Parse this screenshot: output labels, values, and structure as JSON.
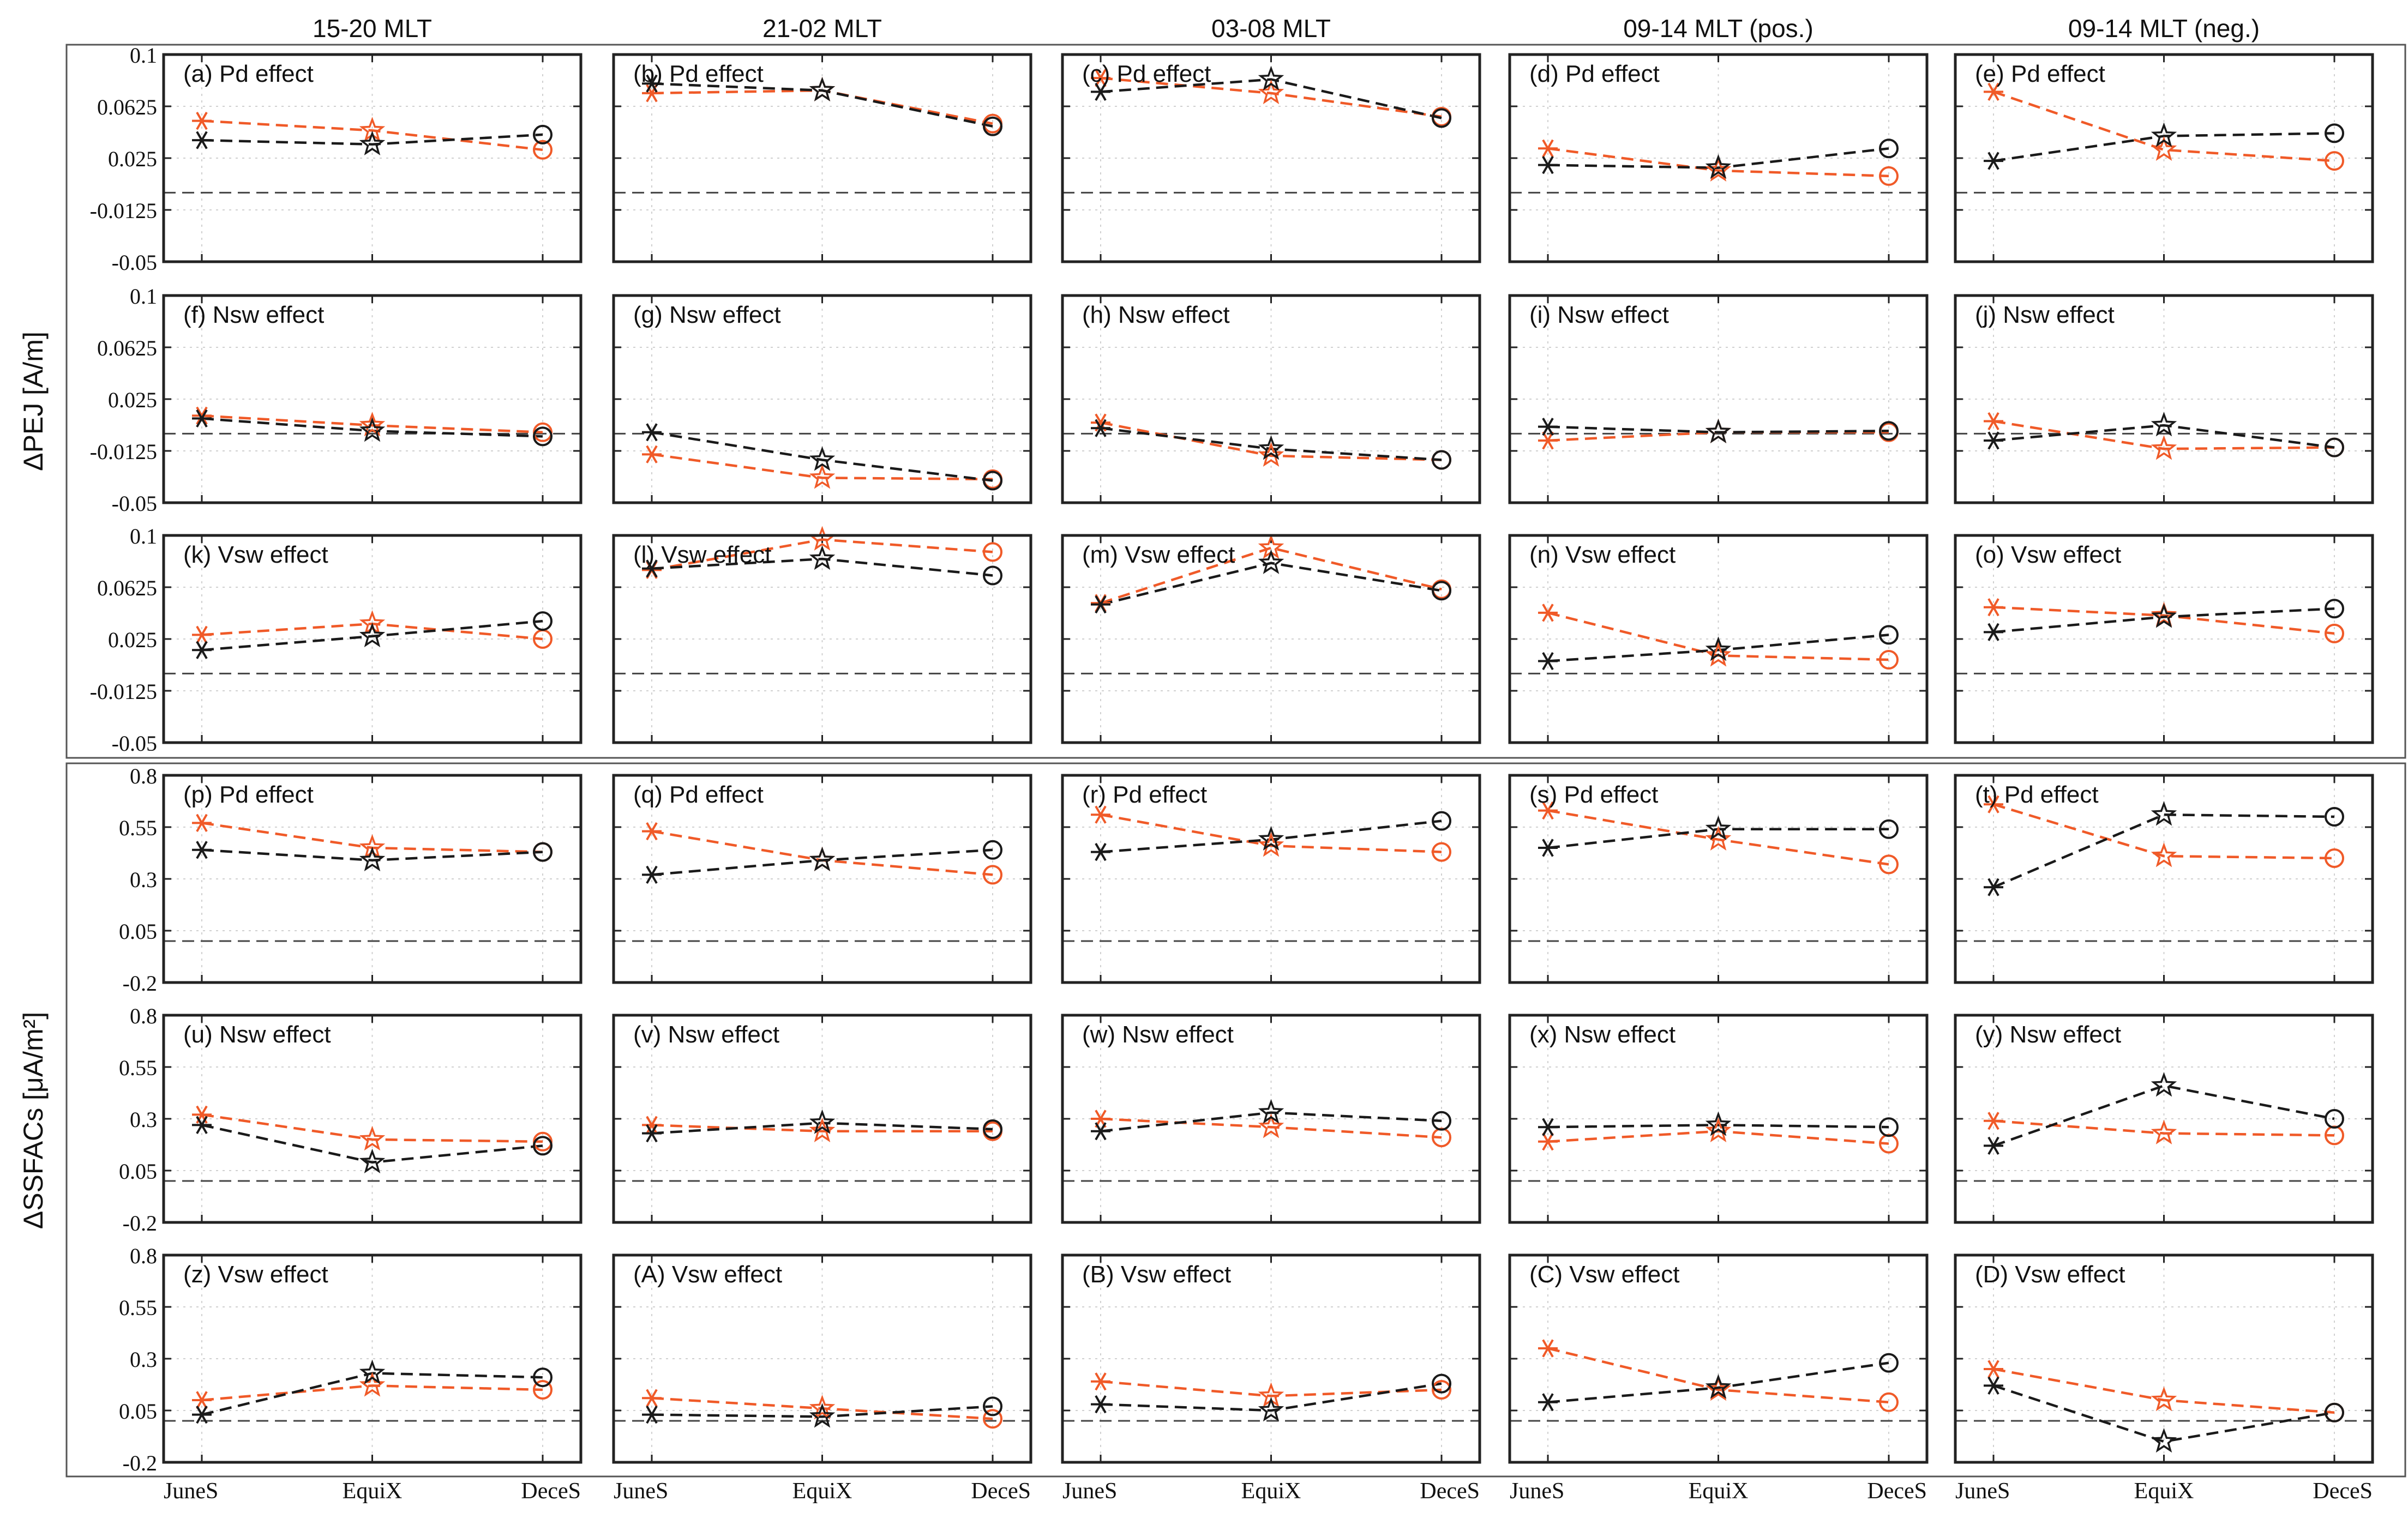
{
  "figure": {
    "column_titles": [
      "15-20 MLT",
      "21-02 MLT",
      "03-08 MLT",
      "09-14 MLT (pos.)",
      "09-14 MLT (neg.)"
    ],
    "group_ylabels": [
      "ΔPEJ [A/m]",
      "ΔSSFACs [μA/m²]"
    ]
  },
  "chart_data": {
    "type": "line",
    "x": [
      "JuneS",
      "EquiX",
      "DeceS"
    ],
    "groups": [
      {
        "ylabel": "ΔPEJ [A/m]",
        "ylim": [
          -0.05,
          0.1
        ],
        "yticks": [
          "0.1",
          "0.0625",
          "0.025",
          "-0.0125",
          "-0.05"
        ],
        "zero_line": 0
      },
      {
        "ylabel": "ΔSSFACs [μA/m²]",
        "ylim": [
          -0.2,
          0.8
        ],
        "yticks": [
          "0.8",
          "0.55",
          "0.3",
          "0.05",
          "-0.2"
        ],
        "zero_line": 0
      }
    ],
    "series_colors": {
      "black": "#1a1a1a",
      "orange": "#f05a28"
    },
    "panels": [
      {
        "label": "(a) Pd effect",
        "group": 0,
        "black": [
          0.038,
          0.035,
          0.042
        ],
        "orange": [
          0.052,
          0.045,
          0.031
        ]
      },
      {
        "label": "(b) Pd effect",
        "group": 0,
        "black": [
          0.079,
          0.074,
          0.048
        ],
        "orange": [
          0.072,
          0.074,
          0.05
        ]
      },
      {
        "label": "(c) Pd effect",
        "group": 0,
        "black": [
          0.073,
          0.082,
          0.054
        ],
        "orange": [
          0.083,
          0.072,
          0.055
        ]
      },
      {
        "label": "(d) Pd effect",
        "group": 0,
        "black": [
          0.02,
          0.018,
          0.032
        ],
        "orange": [
          0.032,
          0.016,
          0.012
        ]
      },
      {
        "label": "(e) Pd effect",
        "group": 0,
        "black": [
          0.023,
          0.041,
          0.043
        ],
        "orange": [
          0.073,
          0.031,
          0.023
        ]
      },
      {
        "label": "(f) Nsw effect",
        "group": 0,
        "black": [
          0.011,
          0.002,
          -0.002
        ],
        "orange": [
          0.013,
          0.006,
          0.001
        ]
      },
      {
        "label": "(g) Nsw effect",
        "group": 0,
        "black": [
          0.001,
          -0.019,
          -0.034
        ],
        "orange": [
          -0.015,
          -0.032,
          -0.033
        ]
      },
      {
        "label": "(h) Nsw effect",
        "group": 0,
        "black": [
          0.004,
          -0.011,
          -0.019
        ],
        "orange": [
          0.008,
          -0.016,
          -0.019
        ]
      },
      {
        "label": "(i) Nsw effect",
        "group": 0,
        "black": [
          0.005,
          0.001,
          0.002
        ],
        "orange": [
          -0.005,
          0.001,
          0.001
        ]
      },
      {
        "label": "(j) Nsw effect",
        "group": 0,
        "black": [
          -0.005,
          0.006,
          -0.01
        ],
        "orange": [
          0.009,
          -0.011,
          -0.01
        ]
      },
      {
        "label": "(k) Vsw effect",
        "group": 0,
        "black": [
          0.017,
          0.027,
          0.038
        ],
        "orange": [
          0.028,
          0.036,
          0.025
        ]
      },
      {
        "label": "(l) Vsw effect",
        "group": 0,
        "black": [
          0.076,
          0.083,
          0.071
        ],
        "orange": [
          0.075,
          0.097,
          0.088
        ]
      },
      {
        "label": "(m) Vsw effect",
        "group": 0,
        "black": [
          0.05,
          0.08,
          0.06
        ],
        "orange": [
          0.051,
          0.091,
          0.061
        ]
      },
      {
        "label": "(n) Vsw effect",
        "group": 0,
        "black": [
          0.009,
          0.017,
          0.028
        ],
        "orange": [
          0.044,
          0.013,
          0.01
        ]
      },
      {
        "label": "(o) Vsw effect",
        "group": 0,
        "black": [
          0.03,
          0.041,
          0.047
        ],
        "orange": [
          0.048,
          0.042,
          0.029
        ]
      },
      {
        "label": "(p) Pd effect",
        "group": 1,
        "black": [
          0.44,
          0.39,
          0.43
        ],
        "orange": [
          0.57,
          0.45,
          0.43
        ]
      },
      {
        "label": "(q) Pd effect",
        "group": 1,
        "black": [
          0.32,
          0.39,
          0.44
        ],
        "orange": [
          0.53,
          0.39,
          0.32
        ]
      },
      {
        "label": "(r) Pd effect",
        "group": 1,
        "black": [
          0.43,
          0.49,
          0.58
        ],
        "orange": [
          0.61,
          0.46,
          0.43
        ]
      },
      {
        "label": "(s) Pd effect",
        "group": 1,
        "black": [
          0.45,
          0.54,
          0.54
        ],
        "orange": [
          0.63,
          0.49,
          0.37
        ]
      },
      {
        "label": "(t) Pd effect",
        "group": 1,
        "black": [
          0.26,
          0.61,
          0.6
        ],
        "orange": [
          0.66,
          0.41,
          0.4
        ]
      },
      {
        "label": "(u) Nsw effect",
        "group": 1,
        "black": [
          0.27,
          0.09,
          0.17
        ],
        "orange": [
          0.32,
          0.2,
          0.19
        ]
      },
      {
        "label": "(v) Nsw effect",
        "group": 1,
        "black": [
          0.23,
          0.28,
          0.25
        ],
        "orange": [
          0.27,
          0.24,
          0.24
        ]
      },
      {
        "label": "(w) Nsw effect",
        "group": 1,
        "black": [
          0.24,
          0.33,
          0.29
        ],
        "orange": [
          0.3,
          0.26,
          0.21
        ]
      },
      {
        "label": "(x) Nsw effect",
        "group": 1,
        "black": [
          0.26,
          0.27,
          0.26
        ],
        "orange": [
          0.19,
          0.24,
          0.18
        ]
      },
      {
        "label": "(y) Nsw effect",
        "group": 1,
        "black": [
          0.17,
          0.46,
          0.3
        ],
        "orange": [
          0.29,
          0.23,
          0.22
        ]
      },
      {
        "label": "(z) Vsw effect",
        "group": 1,
        "black": [
          0.03,
          0.23,
          0.21
        ],
        "orange": [
          0.1,
          0.17,
          0.15
        ]
      },
      {
        "label": "(A) Vsw effect",
        "group": 1,
        "black": [
          0.03,
          0.02,
          0.07
        ],
        "orange": [
          0.11,
          0.06,
          0.01
        ]
      },
      {
        "label": "(B) Vsw effect",
        "group": 1,
        "black": [
          0.08,
          0.05,
          0.18
        ],
        "orange": [
          0.19,
          0.12,
          0.15
        ]
      },
      {
        "label": "(C) Vsw effect",
        "group": 1,
        "black": [
          0.09,
          0.16,
          0.28
        ],
        "orange": [
          0.35,
          0.15,
          0.09
        ]
      },
      {
        "label": "(D) Vsw effect",
        "group": 1,
        "black": [
          0.17,
          -0.1,
          0.04
        ],
        "orange": [
          0.25,
          0.1,
          0.04
        ]
      }
    ]
  }
}
